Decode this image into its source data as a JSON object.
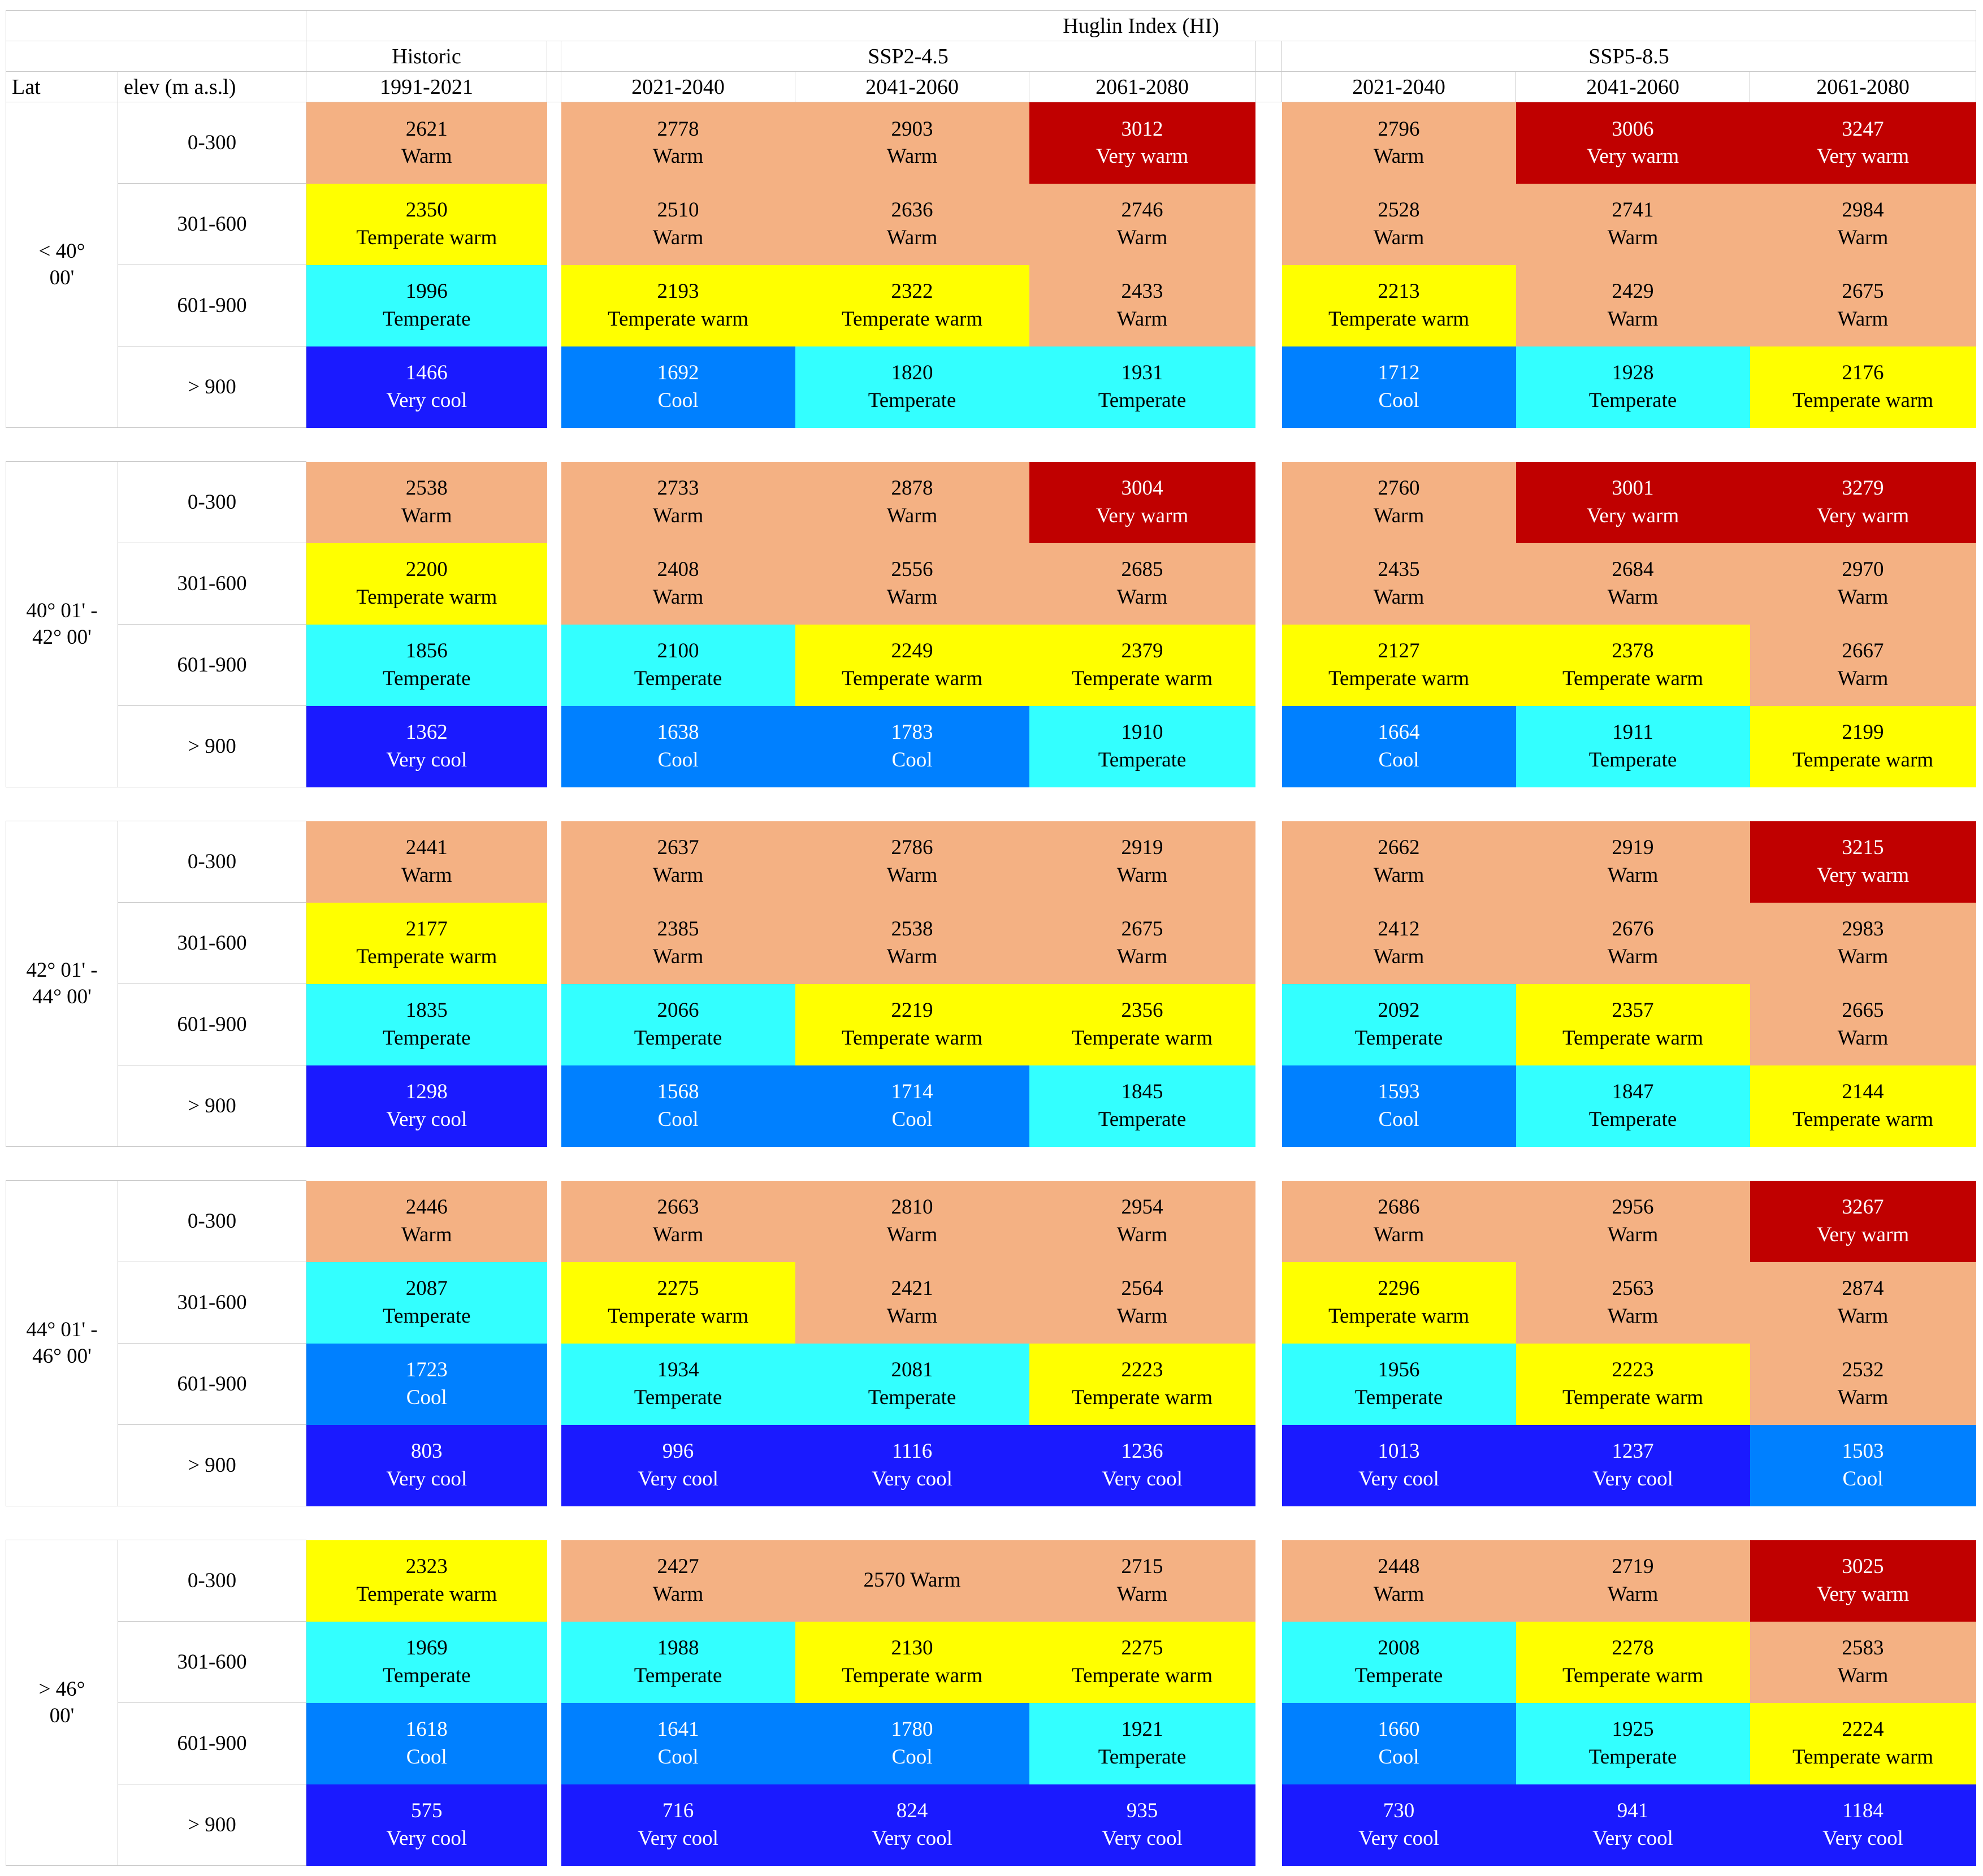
{
  "chart_data": {
    "type": "table",
    "title": "Huglin Index (HI)",
    "lat_header": "Lat",
    "elev_header": "elev (m a.s.l)",
    "scenarios": [
      {
        "name": "Historic",
        "periods": [
          "1991-2021"
        ]
      },
      {
        "name": "SSP2-4.5",
        "periods": [
          "2021-2040",
          "2041-2060",
          "2061-2080"
        ]
      },
      {
        "name": "SSP5-8.5",
        "periods": [
          "2021-2040",
          "2041-2060",
          "2061-2080"
        ]
      }
    ],
    "classes": {
      "vw": {
        "label": "Very warm",
        "bg": "#C00000",
        "fg": "#FFFFFF"
      },
      "w": {
        "label": "Warm",
        "bg": "#F4B183",
        "fg": "#000000"
      },
      "tw": {
        "label": "Temperate warm",
        "bg": "#FFFF00",
        "fg": "#000000"
      },
      "t": {
        "label": "Temperate",
        "bg": "#33FFFF",
        "fg": "#000000"
      },
      "c": {
        "label": "Cool",
        "bg": "#0080FF",
        "fg": "#FFFFFF"
      },
      "vc": {
        "label": "Very cool",
        "bg": "#1A1AFF",
        "fg": "#FFFFFF"
      }
    },
    "column_order": [
      "Historic 1991-2021",
      "SSP2-4.5 2021-2040",
      "SSP2-4.5 2041-2060",
      "SSP2-4.5 2061-2080",
      "SSP5-8.5 2021-2040",
      "SSP5-8.5 2041-2060",
      "SSP5-8.5 2061-2080"
    ],
    "groups": [
      {
        "lat": "< 40°\n00'",
        "rows": [
          {
            "elev": "0-300",
            "cells": [
              {
                "v": 2621,
                "k": "w"
              },
              {
                "v": 2778,
                "k": "w"
              },
              {
                "v": 2903,
                "k": "w"
              },
              {
                "v": 3012,
                "k": "vw"
              },
              {
                "v": 2796,
                "k": "w"
              },
              {
                "v": 3006,
                "k": "vw"
              },
              {
                "v": 3247,
                "k": "vw"
              }
            ]
          },
          {
            "elev": "301-600",
            "cells": [
              {
                "v": 2350,
                "k": "tw"
              },
              {
                "v": 2510,
                "k": "w"
              },
              {
                "v": 2636,
                "k": "w"
              },
              {
                "v": 2746,
                "k": "w"
              },
              {
                "v": 2528,
                "k": "w"
              },
              {
                "v": 2741,
                "k": "w"
              },
              {
                "v": 2984,
                "k": "w"
              }
            ]
          },
          {
            "elev": "601-900",
            "cells": [
              {
                "v": 1996,
                "k": "t"
              },
              {
                "v": 2193,
                "k": "tw"
              },
              {
                "v": 2322,
                "k": "tw"
              },
              {
                "v": 2433,
                "k": "w"
              },
              {
                "v": 2213,
                "k": "tw"
              },
              {
                "v": 2429,
                "k": "w"
              },
              {
                "v": 2675,
                "k": "w"
              }
            ]
          },
          {
            "elev": "> 900",
            "cells": [
              {
                "v": 1466,
                "k": "vc"
              },
              {
                "v": 1692,
                "k": "c"
              },
              {
                "v": 1820,
                "k": "t"
              },
              {
                "v": 1931,
                "k": "t"
              },
              {
                "v": 1712,
                "k": "c"
              },
              {
                "v": 1928,
                "k": "t"
              },
              {
                "v": 2176,
                "k": "tw"
              }
            ]
          }
        ]
      },
      {
        "lat": "40° 01' -\n42° 00'",
        "rows": [
          {
            "elev": "0-300",
            "cells": [
              {
                "v": 2538,
                "k": "w"
              },
              {
                "v": 2733,
                "k": "w"
              },
              {
                "v": 2878,
                "k": "w"
              },
              {
                "v": 3004,
                "k": "vw"
              },
              {
                "v": 2760,
                "k": "w"
              },
              {
                "v": 3001,
                "k": "vw"
              },
              {
                "v": 3279,
                "k": "vw"
              }
            ]
          },
          {
            "elev": "301-600",
            "cells": [
              {
                "v": 2200,
                "k": "tw"
              },
              {
                "v": 2408,
                "k": "w"
              },
              {
                "v": 2556,
                "k": "w"
              },
              {
                "v": 2685,
                "k": "w"
              },
              {
                "v": 2435,
                "k": "w"
              },
              {
                "v": 2684,
                "k": "w"
              },
              {
                "v": 2970,
                "k": "w"
              }
            ]
          },
          {
            "elev": "601-900",
            "cells": [
              {
                "v": 1856,
                "k": "t"
              },
              {
                "v": 2100,
                "k": "t"
              },
              {
                "v": 2249,
                "k": "tw"
              },
              {
                "v": 2379,
                "k": "tw"
              },
              {
                "v": 2127,
                "k": "tw"
              },
              {
                "v": 2378,
                "k": "tw"
              },
              {
                "v": 2667,
                "k": "w"
              }
            ]
          },
          {
            "elev": "> 900",
            "cells": [
              {
                "v": 1362,
                "k": "vc"
              },
              {
                "v": 1638,
                "k": "c"
              },
              {
                "v": 1783,
                "k": "c"
              },
              {
                "v": 1910,
                "k": "t"
              },
              {
                "v": 1664,
                "k": "c"
              },
              {
                "v": 1911,
                "k": "t"
              },
              {
                "v": 2199,
                "k": "tw"
              }
            ]
          }
        ]
      },
      {
        "lat": "42° 01' -\n44° 00'",
        "rows": [
          {
            "elev": "0-300",
            "cells": [
              {
                "v": 2441,
                "k": "w"
              },
              {
                "v": 2637,
                "k": "w"
              },
              {
                "v": 2786,
                "k": "w"
              },
              {
                "v": 2919,
                "k": "w"
              },
              {
                "v": 2662,
                "k": "w"
              },
              {
                "v": 2919,
                "k": "w"
              },
              {
                "v": 3215,
                "k": "vw"
              }
            ]
          },
          {
            "elev": "301-600",
            "cells": [
              {
                "v": 2177,
                "k": "tw"
              },
              {
                "v": 2385,
                "k": "w"
              },
              {
                "v": 2538,
                "k": "w"
              },
              {
                "v": 2675,
                "k": "w"
              },
              {
                "v": 2412,
                "k": "w"
              },
              {
                "v": 2676,
                "k": "w"
              },
              {
                "v": 2983,
                "k": "w"
              }
            ]
          },
          {
            "elev": "601-900",
            "cells": [
              {
                "v": 1835,
                "k": "t"
              },
              {
                "v": 2066,
                "k": "t"
              },
              {
                "v": 2219,
                "k": "tw"
              },
              {
                "v": 2356,
                "k": "tw"
              },
              {
                "v": 2092,
                "k": "t"
              },
              {
                "v": 2357,
                "k": "tw"
              },
              {
                "v": 2665,
                "k": "w"
              }
            ]
          },
          {
            "elev": "> 900",
            "cells": [
              {
                "v": 1298,
                "k": "vc"
              },
              {
                "v": 1568,
                "k": "c"
              },
              {
                "v": 1714,
                "k": "c"
              },
              {
                "v": 1845,
                "k": "t"
              },
              {
                "v": 1593,
                "k": "c"
              },
              {
                "v": 1847,
                "k": "t"
              },
              {
                "v": 2144,
                "k": "tw"
              }
            ]
          }
        ]
      },
      {
        "lat": "44° 01' -\n46° 00'",
        "rows": [
          {
            "elev": "0-300",
            "cells": [
              {
                "v": 2446,
                "k": "w"
              },
              {
                "v": 2663,
                "k": "w"
              },
              {
                "v": 2810,
                "k": "w"
              },
              {
                "v": 2954,
                "k": "w"
              },
              {
                "v": 2686,
                "k": "w"
              },
              {
                "v": 2956,
                "k": "w"
              },
              {
                "v": 3267,
                "k": "vw"
              }
            ]
          },
          {
            "elev": "301-600",
            "cells": [
              {
                "v": 2087,
                "k": "t"
              },
              {
                "v": 2275,
                "k": "tw"
              },
              {
                "v": 2421,
                "k": "w"
              },
              {
                "v": 2564,
                "k": "w"
              },
              {
                "v": 2296,
                "k": "tw"
              },
              {
                "v": 2563,
                "k": "w"
              },
              {
                "v": 2874,
                "k": "w"
              }
            ]
          },
          {
            "elev": "601-900",
            "cells": [
              {
                "v": 1723,
                "k": "c"
              },
              {
                "v": 1934,
                "k": "t"
              },
              {
                "v": 2081,
                "k": "t"
              },
              {
                "v": 2223,
                "k": "tw"
              },
              {
                "v": 1956,
                "k": "t"
              },
              {
                "v": 2223,
                "k": "tw"
              },
              {
                "v": 2532,
                "k": "w"
              }
            ]
          },
          {
            "elev": "> 900",
            "cells": [
              {
                "v": 803,
                "k": "vc"
              },
              {
                "v": 996,
                "k": "vc"
              },
              {
                "v": 1116,
                "k": "vc"
              },
              {
                "v": 1236,
                "k": "vc"
              },
              {
                "v": 1013,
                "k": "vc"
              },
              {
                "v": 1237,
                "k": "vc"
              },
              {
                "v": 1503,
                "k": "c"
              }
            ]
          }
        ]
      },
      {
        "lat": "> 46°\n00'",
        "rows": [
          {
            "elev": "0-300",
            "cells": [
              {
                "v": 2323,
                "k": "tw"
              },
              {
                "v": 2427,
                "k": "w"
              },
              {
                "v": 2570,
                "k": "w",
                "inline": true
              },
              {
                "v": 2715,
                "k": "w"
              },
              {
                "v": 2448,
                "k": "w"
              },
              {
                "v": 2719,
                "k": "w"
              },
              {
                "v": 3025,
                "k": "vw"
              }
            ]
          },
          {
            "elev": "301-600",
            "cells": [
              {
                "v": 1969,
                "k": "t"
              },
              {
                "v": 1988,
                "k": "t"
              },
              {
                "v": 2130,
                "k": "tw"
              },
              {
                "v": 2275,
                "k": "tw"
              },
              {
                "v": 2008,
                "k": "t"
              },
              {
                "v": 2278,
                "k": "tw"
              },
              {
                "v": 2583,
                "k": "w"
              }
            ]
          },
          {
            "elev": "601-900",
            "cells": [
              {
                "v": 1618,
                "k": "c"
              },
              {
                "v": 1641,
                "k": "c"
              },
              {
                "v": 1780,
                "k": "c"
              },
              {
                "v": 1921,
                "k": "t"
              },
              {
                "v": 1660,
                "k": "c"
              },
              {
                "v": 1925,
                "k": "t"
              },
              {
                "v": 2224,
                "k": "tw"
              }
            ]
          },
          {
            "elev": "> 900",
            "cells": [
              {
                "v": 575,
                "k": "vc"
              },
              {
                "v": 716,
                "k": "vc"
              },
              {
                "v": 824,
                "k": "vc"
              },
              {
                "v": 935,
                "k": "vc"
              },
              {
                "v": 730,
                "k": "vc"
              },
              {
                "v": 941,
                "k": "vc"
              },
              {
                "v": 1184,
                "k": "vc"
              }
            ]
          }
        ]
      }
    ]
  }
}
